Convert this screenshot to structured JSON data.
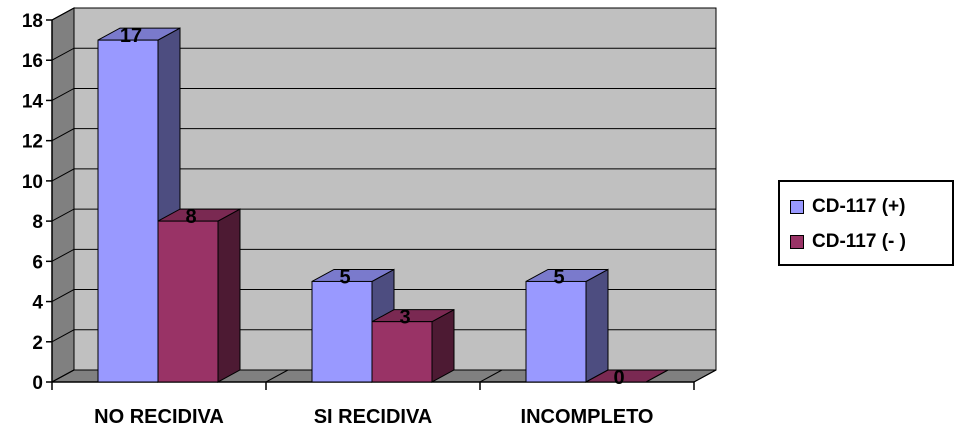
{
  "chart_data": {
    "type": "bar",
    "categories": [
      "NO RECIDIVA",
      "SI RECIDIVA",
      "INCOMPLETO"
    ],
    "series": [
      {
        "name": "CD-117 (+)",
        "values": [
          17,
          5,
          5
        ],
        "color": "#9999ff",
        "side_color": "#4d4d80",
        "top_color": "#7a7acc"
      },
      {
        "name": "CD-117 (- )",
        "values": [
          8,
          3,
          0
        ],
        "color": "#993366",
        "side_color": "#4d1a33",
        "top_color": "#7a2952"
      }
    ],
    "ylim": [
      0,
      18
    ],
    "yticks": [
      "0",
      "2",
      "4",
      "6",
      "8",
      "10",
      "12",
      "14",
      "16",
      "18"
    ],
    "grid": true,
    "wall_color": "#c0c0c0",
    "floor_color": "#808080",
    "legend_position": "right",
    "title": "",
    "xlabel": "",
    "ylabel": ""
  }
}
